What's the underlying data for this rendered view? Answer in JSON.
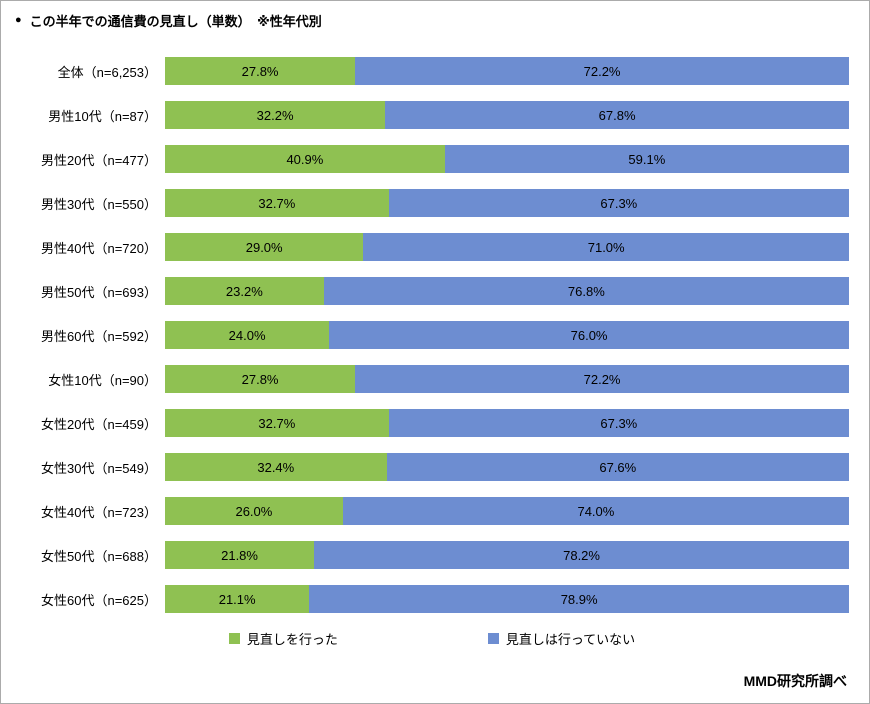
{
  "header": {
    "bullet": "●",
    "title": "この半年での通信費の見直し（単数）　※性年代別"
  },
  "chart_data": {
    "type": "bar",
    "orientation": "horizontal",
    "stacked": true,
    "grid": false,
    "legend_position": "bottom",
    "xlim": [
      0,
      100
    ],
    "value_suffix": "%",
    "categories": [
      "全体（n=6,253）",
      "男性10代（n=87）",
      "男性20代（n=477）",
      "男性30代（n=550）",
      "男性40代（n=720）",
      "男性50代（n=693）",
      "男性60代（n=592）",
      "女性10代（n=90）",
      "女性20代（n=459）",
      "女性30代（n=549）",
      "女性40代（n=723）",
      "女性50代（n=688）",
      "女性60代（n=625）"
    ],
    "series": [
      {
        "name": "見直しを行った",
        "color": "#8fc152",
        "values": [
          27.8,
          32.2,
          40.9,
          32.7,
          29.0,
          23.2,
          24.0,
          27.8,
          32.7,
          32.4,
          26.0,
          21.8,
          21.1
        ]
      },
      {
        "name": "見直しは行っていない",
        "color": "#6d8dd1",
        "values": [
          72.2,
          67.8,
          59.1,
          67.3,
          71.0,
          76.8,
          76.0,
          72.2,
          67.3,
          67.6,
          74.0,
          78.2,
          78.9
        ]
      }
    ]
  },
  "footer": {
    "source": "MMD研究所調べ"
  }
}
